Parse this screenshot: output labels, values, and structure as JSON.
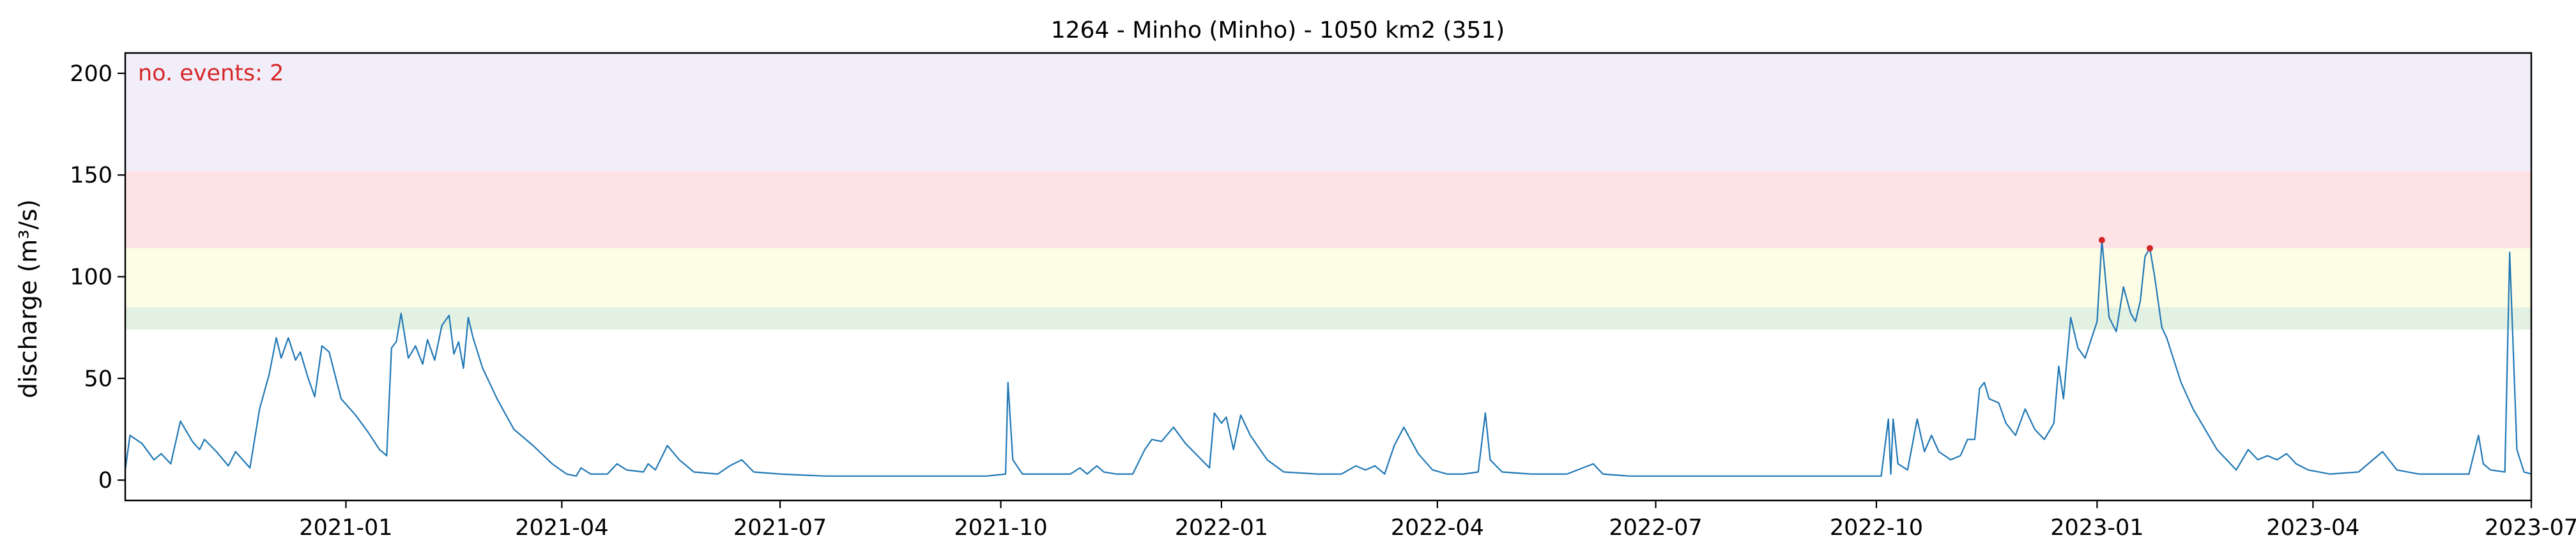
{
  "chart_data": {
    "type": "line",
    "title": "1264 - Minho (Minho) - 1050 km2 (351)",
    "ylabel": "discharge (m³/s)",
    "xlabel": "",
    "xlim": [
      "2020-10-01",
      "2023-07-01"
    ],
    "ylim": [
      -10,
      210
    ],
    "grid": false,
    "annotation": "no. events: 2",
    "yticks": [
      0,
      50,
      100,
      150,
      200
    ],
    "xticks": [
      "2021-01",
      "2021-04",
      "2021-07",
      "2021-10",
      "2022-01",
      "2022-04",
      "2022-07",
      "2022-10",
      "2023-01",
      "2023-04",
      "2023-07"
    ],
    "threshold_bands": [
      {
        "from": 74,
        "to": 85,
        "color": "#e3f1e3"
      },
      {
        "from": 85,
        "to": 114,
        "color": "#fdfde6"
      },
      {
        "from": 114,
        "to": 152,
        "color": "#fde3e5"
      },
      {
        "from": 152,
        "to": 210,
        "color": "#f1eefa"
      }
    ],
    "series": [
      {
        "color": "#1f77b4",
        "points": [
          [
            "2020-10-01",
            5
          ],
          [
            "2020-10-03",
            22
          ],
          [
            "2020-10-08",
            18
          ],
          [
            "2020-10-13",
            10
          ],
          [
            "2020-10-16",
            13
          ],
          [
            "2020-10-20",
            8
          ],
          [
            "2020-10-24",
            29
          ],
          [
            "2020-10-29",
            19
          ],
          [
            "2020-11-01",
            15
          ],
          [
            "2020-11-03",
            20
          ],
          [
            "2020-11-08",
            14
          ],
          [
            "2020-11-13",
            7
          ],
          [
            "2020-11-16",
            14
          ],
          [
            "2020-11-22",
            6
          ],
          [
            "2020-11-26",
            35
          ],
          [
            "2020-11-30",
            52
          ],
          [
            "2020-12-03",
            70
          ],
          [
            "2020-12-05",
            60
          ],
          [
            "2020-12-08",
            70
          ],
          [
            "2020-12-11",
            59
          ],
          [
            "2020-12-13",
            63
          ],
          [
            "2020-12-16",
            51
          ],
          [
            "2020-12-19",
            41
          ],
          [
            "2020-12-22",
            66
          ],
          [
            "2020-12-25",
            63
          ],
          [
            "2020-12-30",
            40
          ],
          [
            "2021-01-05",
            32
          ],
          [
            "2021-01-10",
            24
          ],
          [
            "2021-01-15",
            15
          ],
          [
            "2021-01-18",
            12
          ],
          [
            "2021-01-20",
            65
          ],
          [
            "2021-01-22",
            68
          ],
          [
            "2021-01-24",
            82
          ],
          [
            "2021-01-27",
            60
          ],
          [
            "2021-01-30",
            66
          ],
          [
            "2021-02-02",
            57
          ],
          [
            "2021-02-04",
            69
          ],
          [
            "2021-02-07",
            59
          ],
          [
            "2021-02-10",
            76
          ],
          [
            "2021-02-13",
            81
          ],
          [
            "2021-02-15",
            62
          ],
          [
            "2021-02-17",
            68
          ],
          [
            "2021-02-19",
            55
          ],
          [
            "2021-02-21",
            80
          ],
          [
            "2021-02-23",
            70
          ],
          [
            "2021-02-27",
            55
          ],
          [
            "2021-03-01",
            50
          ],
          [
            "2021-03-05",
            40
          ],
          [
            "2021-03-12",
            25
          ],
          [
            "2021-03-20",
            17
          ],
          [
            "2021-03-28",
            8
          ],
          [
            "2021-04-03",
            3
          ],
          [
            "2021-04-07",
            2
          ],
          [
            "2021-04-09",
            6
          ],
          [
            "2021-04-13",
            3
          ],
          [
            "2021-04-20",
            3
          ],
          [
            "2021-04-24",
            8
          ],
          [
            "2021-04-28",
            5
          ],
          [
            "2021-05-05",
            4
          ],
          [
            "2021-05-07",
            8
          ],
          [
            "2021-05-10",
            5
          ],
          [
            "2021-05-15",
            17
          ],
          [
            "2021-05-20",
            10
          ],
          [
            "2021-05-26",
            4
          ],
          [
            "2021-06-05",
            3
          ],
          [
            "2021-06-10",
            7
          ],
          [
            "2021-06-15",
            10
          ],
          [
            "2021-06-20",
            4
          ],
          [
            "2021-07-01",
            3
          ],
          [
            "2021-07-20",
            2
          ],
          [
            "2021-08-15",
            2
          ],
          [
            "2021-09-10",
            2
          ],
          [
            "2021-09-25",
            2
          ],
          [
            "2021-10-03",
            3
          ],
          [
            "2021-10-04",
            48
          ],
          [
            "2021-10-06",
            10
          ],
          [
            "2021-10-10",
            3
          ],
          [
            "2021-10-20",
            3
          ],
          [
            "2021-10-30",
            3
          ],
          [
            "2021-11-03",
            6
          ],
          [
            "2021-11-06",
            3
          ],
          [
            "2021-11-10",
            7
          ],
          [
            "2021-11-13",
            4
          ],
          [
            "2021-11-18",
            3
          ],
          [
            "2021-11-25",
            3
          ],
          [
            "2021-11-30",
            15
          ],
          [
            "2021-12-03",
            20
          ],
          [
            "2021-12-07",
            19
          ],
          [
            "2021-12-12",
            26
          ],
          [
            "2021-12-17",
            18
          ],
          [
            "2021-12-22",
            12
          ],
          [
            "2021-12-27",
            6
          ],
          [
            "2021-12-29",
            33
          ],
          [
            "2022-01-01",
            28
          ],
          [
            "2022-01-03",
            31
          ],
          [
            "2022-01-06",
            15
          ],
          [
            "2022-01-09",
            32
          ],
          [
            "2022-01-13",
            22
          ],
          [
            "2022-01-20",
            10
          ],
          [
            "2022-01-27",
            4
          ],
          [
            "2022-02-10",
            3
          ],
          [
            "2022-02-20",
            3
          ],
          [
            "2022-02-26",
            7
          ],
          [
            "2022-03-02",
            5
          ],
          [
            "2022-03-06",
            7
          ],
          [
            "2022-03-10",
            3
          ],
          [
            "2022-03-14",
            17
          ],
          [
            "2022-03-18",
            26
          ],
          [
            "2022-03-24",
            13
          ],
          [
            "2022-03-30",
            5
          ],
          [
            "2022-04-05",
            3
          ],
          [
            "2022-04-12",
            3
          ],
          [
            "2022-04-18",
            4
          ],
          [
            "2022-04-21",
            33
          ],
          [
            "2022-04-23",
            10
          ],
          [
            "2022-04-28",
            4
          ],
          [
            "2022-05-10",
            3
          ],
          [
            "2022-05-25",
            3
          ],
          [
            "2022-06-05",
            8
          ],
          [
            "2022-06-09",
            3
          ],
          [
            "2022-06-20",
            2
          ],
          [
            "2022-07-20",
            2
          ],
          [
            "2022-08-20",
            2
          ],
          [
            "2022-09-20",
            2
          ],
          [
            "2022-10-03",
            2
          ],
          [
            "2022-10-06",
            30
          ],
          [
            "2022-10-07",
            3
          ],
          [
            "2022-10-08",
            30
          ],
          [
            "2022-10-10",
            8
          ],
          [
            "2022-10-14",
            5
          ],
          [
            "2022-10-18",
            30
          ],
          [
            "2022-10-21",
            14
          ],
          [
            "2022-10-24",
            22
          ],
          [
            "2022-10-27",
            14
          ],
          [
            "2022-11-01",
            10
          ],
          [
            "2022-11-05",
            12
          ],
          [
            "2022-11-08",
            20
          ],
          [
            "2022-11-11",
            20
          ],
          [
            "2022-11-13",
            45
          ],
          [
            "2022-11-15",
            48
          ],
          [
            "2022-11-17",
            40
          ],
          [
            "2022-11-21",
            38
          ],
          [
            "2022-11-24",
            28
          ],
          [
            "2022-11-28",
            22
          ],
          [
            "2022-12-02",
            35
          ],
          [
            "2022-12-06",
            25
          ],
          [
            "2022-12-10",
            20
          ],
          [
            "2022-12-14",
            28
          ],
          [
            "2022-12-16",
            56
          ],
          [
            "2022-12-18",
            40
          ],
          [
            "2022-12-21",
            80
          ],
          [
            "2022-12-24",
            65
          ],
          [
            "2022-12-27",
            60
          ],
          [
            "2023-01-01",
            78
          ],
          [
            "2023-01-03",
            118
          ],
          [
            "2023-01-06",
            80
          ],
          [
            "2023-01-09",
            73
          ],
          [
            "2023-01-12",
            95
          ],
          [
            "2023-01-15",
            82
          ],
          [
            "2023-01-17",
            78
          ],
          [
            "2023-01-19",
            88
          ],
          [
            "2023-01-21",
            110
          ],
          [
            "2023-01-23",
            114
          ],
          [
            "2023-01-25",
            100
          ],
          [
            "2023-01-28",
            75
          ],
          [
            "2023-01-30",
            70
          ],
          [
            "2023-02-05",
            48
          ],
          [
            "2023-02-10",
            35
          ],
          [
            "2023-02-20",
            15
          ],
          [
            "2023-02-28",
            5
          ],
          [
            "2023-03-05",
            15
          ],
          [
            "2023-03-09",
            10
          ],
          [
            "2023-03-13",
            12
          ],
          [
            "2023-03-17",
            10
          ],
          [
            "2023-03-21",
            13
          ],
          [
            "2023-03-25",
            8
          ],
          [
            "2023-03-30",
            5
          ],
          [
            "2023-04-08",
            3
          ],
          [
            "2023-04-20",
            4
          ],
          [
            "2023-04-30",
            14
          ],
          [
            "2023-05-06",
            5
          ],
          [
            "2023-05-15",
            3
          ],
          [
            "2023-05-30",
            3
          ],
          [
            "2023-06-05",
            3
          ],
          [
            "2023-06-09",
            22
          ],
          [
            "2023-06-11",
            8
          ],
          [
            "2023-06-14",
            5
          ],
          [
            "2023-06-20",
            4
          ],
          [
            "2023-06-22",
            112
          ],
          [
            "2023-06-25",
            15
          ],
          [
            "2023-06-28",
            4
          ],
          [
            "2023-07-01",
            3
          ]
        ]
      }
    ],
    "events": [
      {
        "date": "2023-01-03",
        "value": 118,
        "color": "#d62728"
      },
      {
        "date": "2023-01-23",
        "value": 114,
        "color": "#d62728"
      }
    ]
  }
}
